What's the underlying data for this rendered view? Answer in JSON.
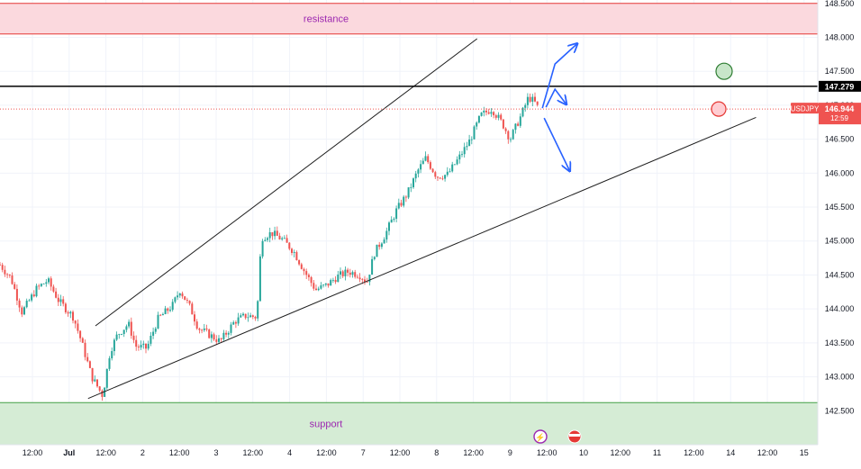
{
  "chart_data": {
    "type": "candlestick",
    "symbol": "USDJPY",
    "last_price": "146.944",
    "countdown": "12:59",
    "marked_level": "147.279",
    "zones": [
      {
        "label": "resistance",
        "from": 148.05,
        "to": 148.5
      },
      {
        "label": "support",
        "from": 142.0,
        "to": 142.62
      }
    ],
    "y_axis": {
      "ticks": [
        "148.500",
        "148.000",
        "147.500",
        "147.000",
        "146.500",
        "146.000",
        "145.500",
        "145.000",
        "144.500",
        "144.000",
        "143.500",
        "143.000",
        "142.500"
      ],
      "range": [
        142.0,
        148.55
      ]
    },
    "x_axis": {
      "ticks": [
        "12:00",
        "Jul",
        "12:00",
        "2",
        "12:00",
        "3",
        "12:00",
        "4",
        "12:00",
        "7",
        "12:00",
        "8",
        "12:00",
        "9",
        "12:00",
        "10",
        "12:00",
        "11",
        "12:00",
        "14",
        "12:00",
        "15"
      ]
    },
    "trendlines": {
      "upper_channel": [
        {
          "t": 1.3,
          "p": 143.75
        },
        {
          "t": 6.5,
          "p": 147.98
        }
      ],
      "lower_support": [
        {
          "t": 1.2,
          "p": 142.68
        },
        {
          "t": 10.3,
          "p": 146.82
        }
      ]
    },
    "scenario_arrows": [
      "up",
      "up",
      "down"
    ],
    "price_path": [
      [
        0.0,
        144.65
      ],
      [
        0.15,
        144.45
      ],
      [
        0.3,
        143.95
      ],
      [
        0.5,
        144.3
      ],
      [
        0.65,
        144.42
      ],
      [
        0.8,
        144.12
      ],
      [
        1.0,
        143.88
      ],
      [
        1.1,
        143.55
      ],
      [
        1.25,
        143.0
      ],
      [
        1.4,
        142.72
      ],
      [
        1.5,
        143.38
      ],
      [
        1.6,
        143.62
      ],
      [
        1.75,
        143.78
      ],
      [
        1.85,
        143.45
      ],
      [
        2.0,
        143.42
      ],
      [
        2.15,
        143.85
      ],
      [
        2.35,
        144.05
      ],
      [
        2.45,
        144.28
      ],
      [
        2.6,
        144.0
      ],
      [
        2.7,
        143.72
      ],
      [
        2.85,
        143.62
      ],
      [
        3.0,
        143.52
      ],
      [
        3.2,
        143.82
      ],
      [
        3.35,
        143.9
      ],
      [
        3.5,
        143.88
      ],
      [
        3.56,
        145.05
      ],
      [
        3.7,
        145.12
      ],
      [
        3.85,
        145.02
      ],
      [
        4.0,
        144.85
      ],
      [
        4.15,
        144.55
      ],
      [
        4.3,
        144.28
      ],
      [
        4.45,
        144.35
      ],
      [
        4.6,
        144.48
      ],
      [
        4.75,
        144.55
      ],
      [
        4.9,
        144.5
      ],
      [
        5.0,
        144.4
      ],
      [
        5.1,
        144.82
      ],
      [
        5.25,
        145.1
      ],
      [
        5.4,
        145.45
      ],
      [
        5.55,
        145.7
      ],
      [
        5.7,
        146.05
      ],
      [
        5.8,
        146.22
      ],
      [
        5.95,
        145.95
      ],
      [
        6.1,
        145.98
      ],
      [
        6.25,
        146.22
      ],
      [
        6.4,
        146.48
      ],
      [
        6.55,
        146.85
      ],
      [
        6.7,
        146.95
      ],
      [
        6.85,
        146.72
      ],
      [
        6.95,
        146.5
      ],
      [
        7.1,
        146.85
      ],
      [
        7.2,
        147.12
      ],
      [
        7.28,
        147.05
      ],
      [
        7.34,
        146.94
      ]
    ]
  }
}
